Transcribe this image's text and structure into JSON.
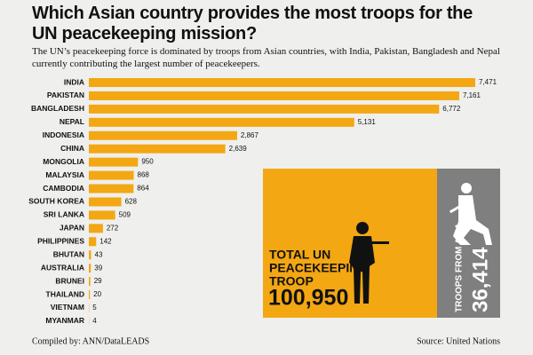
{
  "chart_data": {
    "type": "bar",
    "title": "Which Asian country provides the most troops for the UN peacekeeping mission?",
    "subtitle": "The UN’s peacekeeping force is dominated by troops from Asian countries, with India, Pakistan, Bangladesh and Nepal currently contributing the largest number of peacekeepers.",
    "categories": [
      "INDIA",
      "PAKISTAN",
      "BANGLADESH",
      "NEPAL",
      "INDONESIA",
      "CHINA",
      "MONGOLIA",
      "MALAYSIA",
      "CAMBODIA",
      "SOUTH KOREA",
      "SRI LANKA",
      "JAPAN",
      "PHILIPPINES",
      "BHUTAN",
      "AUSTRALIA",
      "BRUNEI",
      "THAILAND",
      "VIETNAM",
      "MYANMAR"
    ],
    "values": [
      7471,
      7161,
      6772,
      5131,
      2867,
      2639,
      950,
      868,
      864,
      628,
      509,
      272,
      142,
      43,
      39,
      29,
      20,
      5,
      4
    ],
    "value_labels": [
      "7,471",
      "7,161",
      "6,772",
      "5,131",
      "2,867",
      "2,639",
      "950",
      "868",
      "864",
      "628",
      "509",
      "272",
      "142",
      "43",
      "39",
      "29",
      "20",
      "5",
      "4"
    ],
    "color": "#f3a712",
    "annotations": [
      {
        "lines": [
          "TOTAL UN",
          "PEACEKEEPING",
          "TROOP"
        ],
        "value": 100950,
        "value_label": "100,950",
        "color": "#f3a712"
      },
      {
        "lines": [
          "TROOPS FROM ASIA"
        ],
        "value": 36414,
        "value_label": "36,414",
        "color": "#7f7f7f"
      }
    ],
    "footer_left": "Compiled by: ANN/DataLEADS",
    "footer_right": "Source: United Nations"
  }
}
